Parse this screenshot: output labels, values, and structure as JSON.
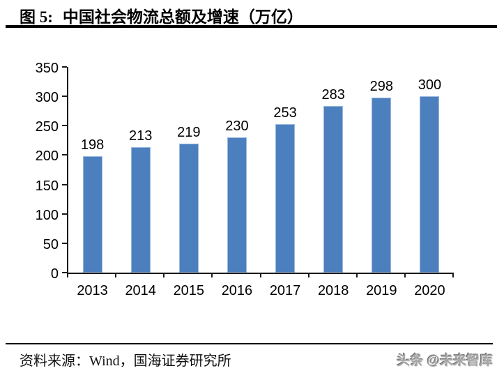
{
  "header": {
    "figure_label": "图 5:",
    "figure_title": "中国社会物流总额及增速（万亿）"
  },
  "chart_data": {
    "type": "bar",
    "title": "中国社会物流总额及增速（万亿）",
    "categories": [
      "2013",
      "2014",
      "2015",
      "2016",
      "2017",
      "2018",
      "2019",
      "2020"
    ],
    "values": [
      198,
      213,
      219,
      230,
      253,
      283,
      298,
      300
    ],
    "xlabel": "",
    "ylabel": "",
    "ylim": [
      0,
      350
    ],
    "yticks": [
      0,
      50,
      100,
      150,
      200,
      250,
      300,
      350
    ],
    "grid": false,
    "legend": "none",
    "value_labels_shown": true,
    "bar_color": "#4C7FBE",
    "bar_border_color": "#9BB9DF",
    "axis_color": "#1a1a1a"
  },
  "footer": {
    "source": "资料来源：Wind，国海证券研究所",
    "watermark": "头条 @未来智库"
  }
}
